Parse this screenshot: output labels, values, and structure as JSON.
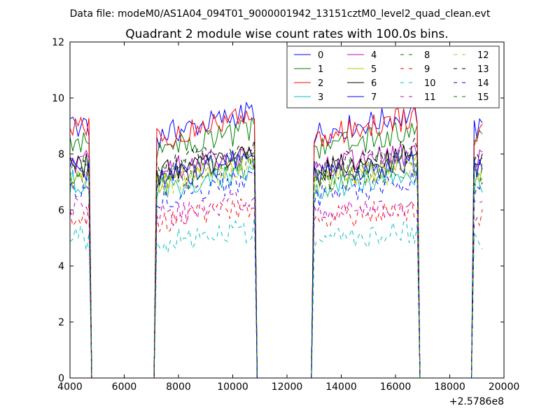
{
  "suptitle": "Data file: modeM0/AS1A04_094T01_9000001942_13151cztM0_level2_quad_clean.evt",
  "chart_data": {
    "type": "line",
    "title": "Quadrant 2 module wise count rates with 100.0s bins.",
    "xlabel": "",
    "ylabel": "",
    "x_offset_label": "+2.5786e8",
    "xlim": [
      4000,
      20000
    ],
    "ylim": [
      0,
      12
    ],
    "xticks": [
      4000,
      6000,
      8000,
      10000,
      12000,
      14000,
      16000,
      18000,
      20000
    ],
    "yticks": [
      0,
      2,
      4,
      6,
      8,
      10,
      12
    ],
    "grid": false,
    "legend_position": "top-right",
    "legend_columns": 4,
    "bin_width": 100,
    "segments": [
      {
        "start": 4000,
        "end": 4700
      },
      {
        "start": 7200,
        "end": 10800
      },
      {
        "start": 13000,
        "end": 16800
      },
      {
        "start": 18900,
        "end": 19200
      }
    ],
    "zero_gaps": [
      {
        "start": 4800,
        "end": 7100
      },
      {
        "start": 10900,
        "end": 12900
      },
      {
        "start": 16900,
        "end": 18800
      }
    ],
    "series": [
      {
        "name": "0",
        "color": "#0000ff",
        "dash": "solid",
        "level": 9.0
      },
      {
        "name": "1",
        "color": "#007f00",
        "dash": "solid",
        "level": 8.4
      },
      {
        "name": "2",
        "color": "#ff0000",
        "dash": "solid",
        "level": 8.9
      },
      {
        "name": "3",
        "color": "#00bfbf",
        "dash": "solid",
        "level": 7.0
      },
      {
        "name": "4",
        "color": "#bf00bf",
        "dash": "solid",
        "level": 7.7
      },
      {
        "name": "5",
        "color": "#bfbf00",
        "dash": "solid",
        "level": 7.3
      },
      {
        "name": "6",
        "color": "#000000",
        "dash": "solid",
        "level": 7.6
      },
      {
        "name": "7",
        "color": "#0000ff",
        "dash": "solid",
        "level": 7.4
      },
      {
        "name": "8",
        "color": "#007f00",
        "dash": "dashed",
        "level": 7.2
      },
      {
        "name": "9",
        "color": "#ff0000",
        "dash": "dashed",
        "level": 5.8
      },
      {
        "name": "10",
        "color": "#00bfbf",
        "dash": "dashed",
        "level": 5.0
      },
      {
        "name": "11",
        "color": "#bf00bf",
        "dash": "dashed",
        "level": 6.0
      },
      {
        "name": "12",
        "color": "#bfbf00",
        "dash": "dashed",
        "level": 7.1
      },
      {
        "name": "13",
        "color": "#000000",
        "dash": "dashed",
        "level": 7.8
      },
      {
        "name": "14",
        "color": "#0000ff",
        "dash": "dashed",
        "level": 6.7
      },
      {
        "name": "15",
        "color": "#007f00",
        "dash": "dashed",
        "level": 7.5
      }
    ]
  }
}
